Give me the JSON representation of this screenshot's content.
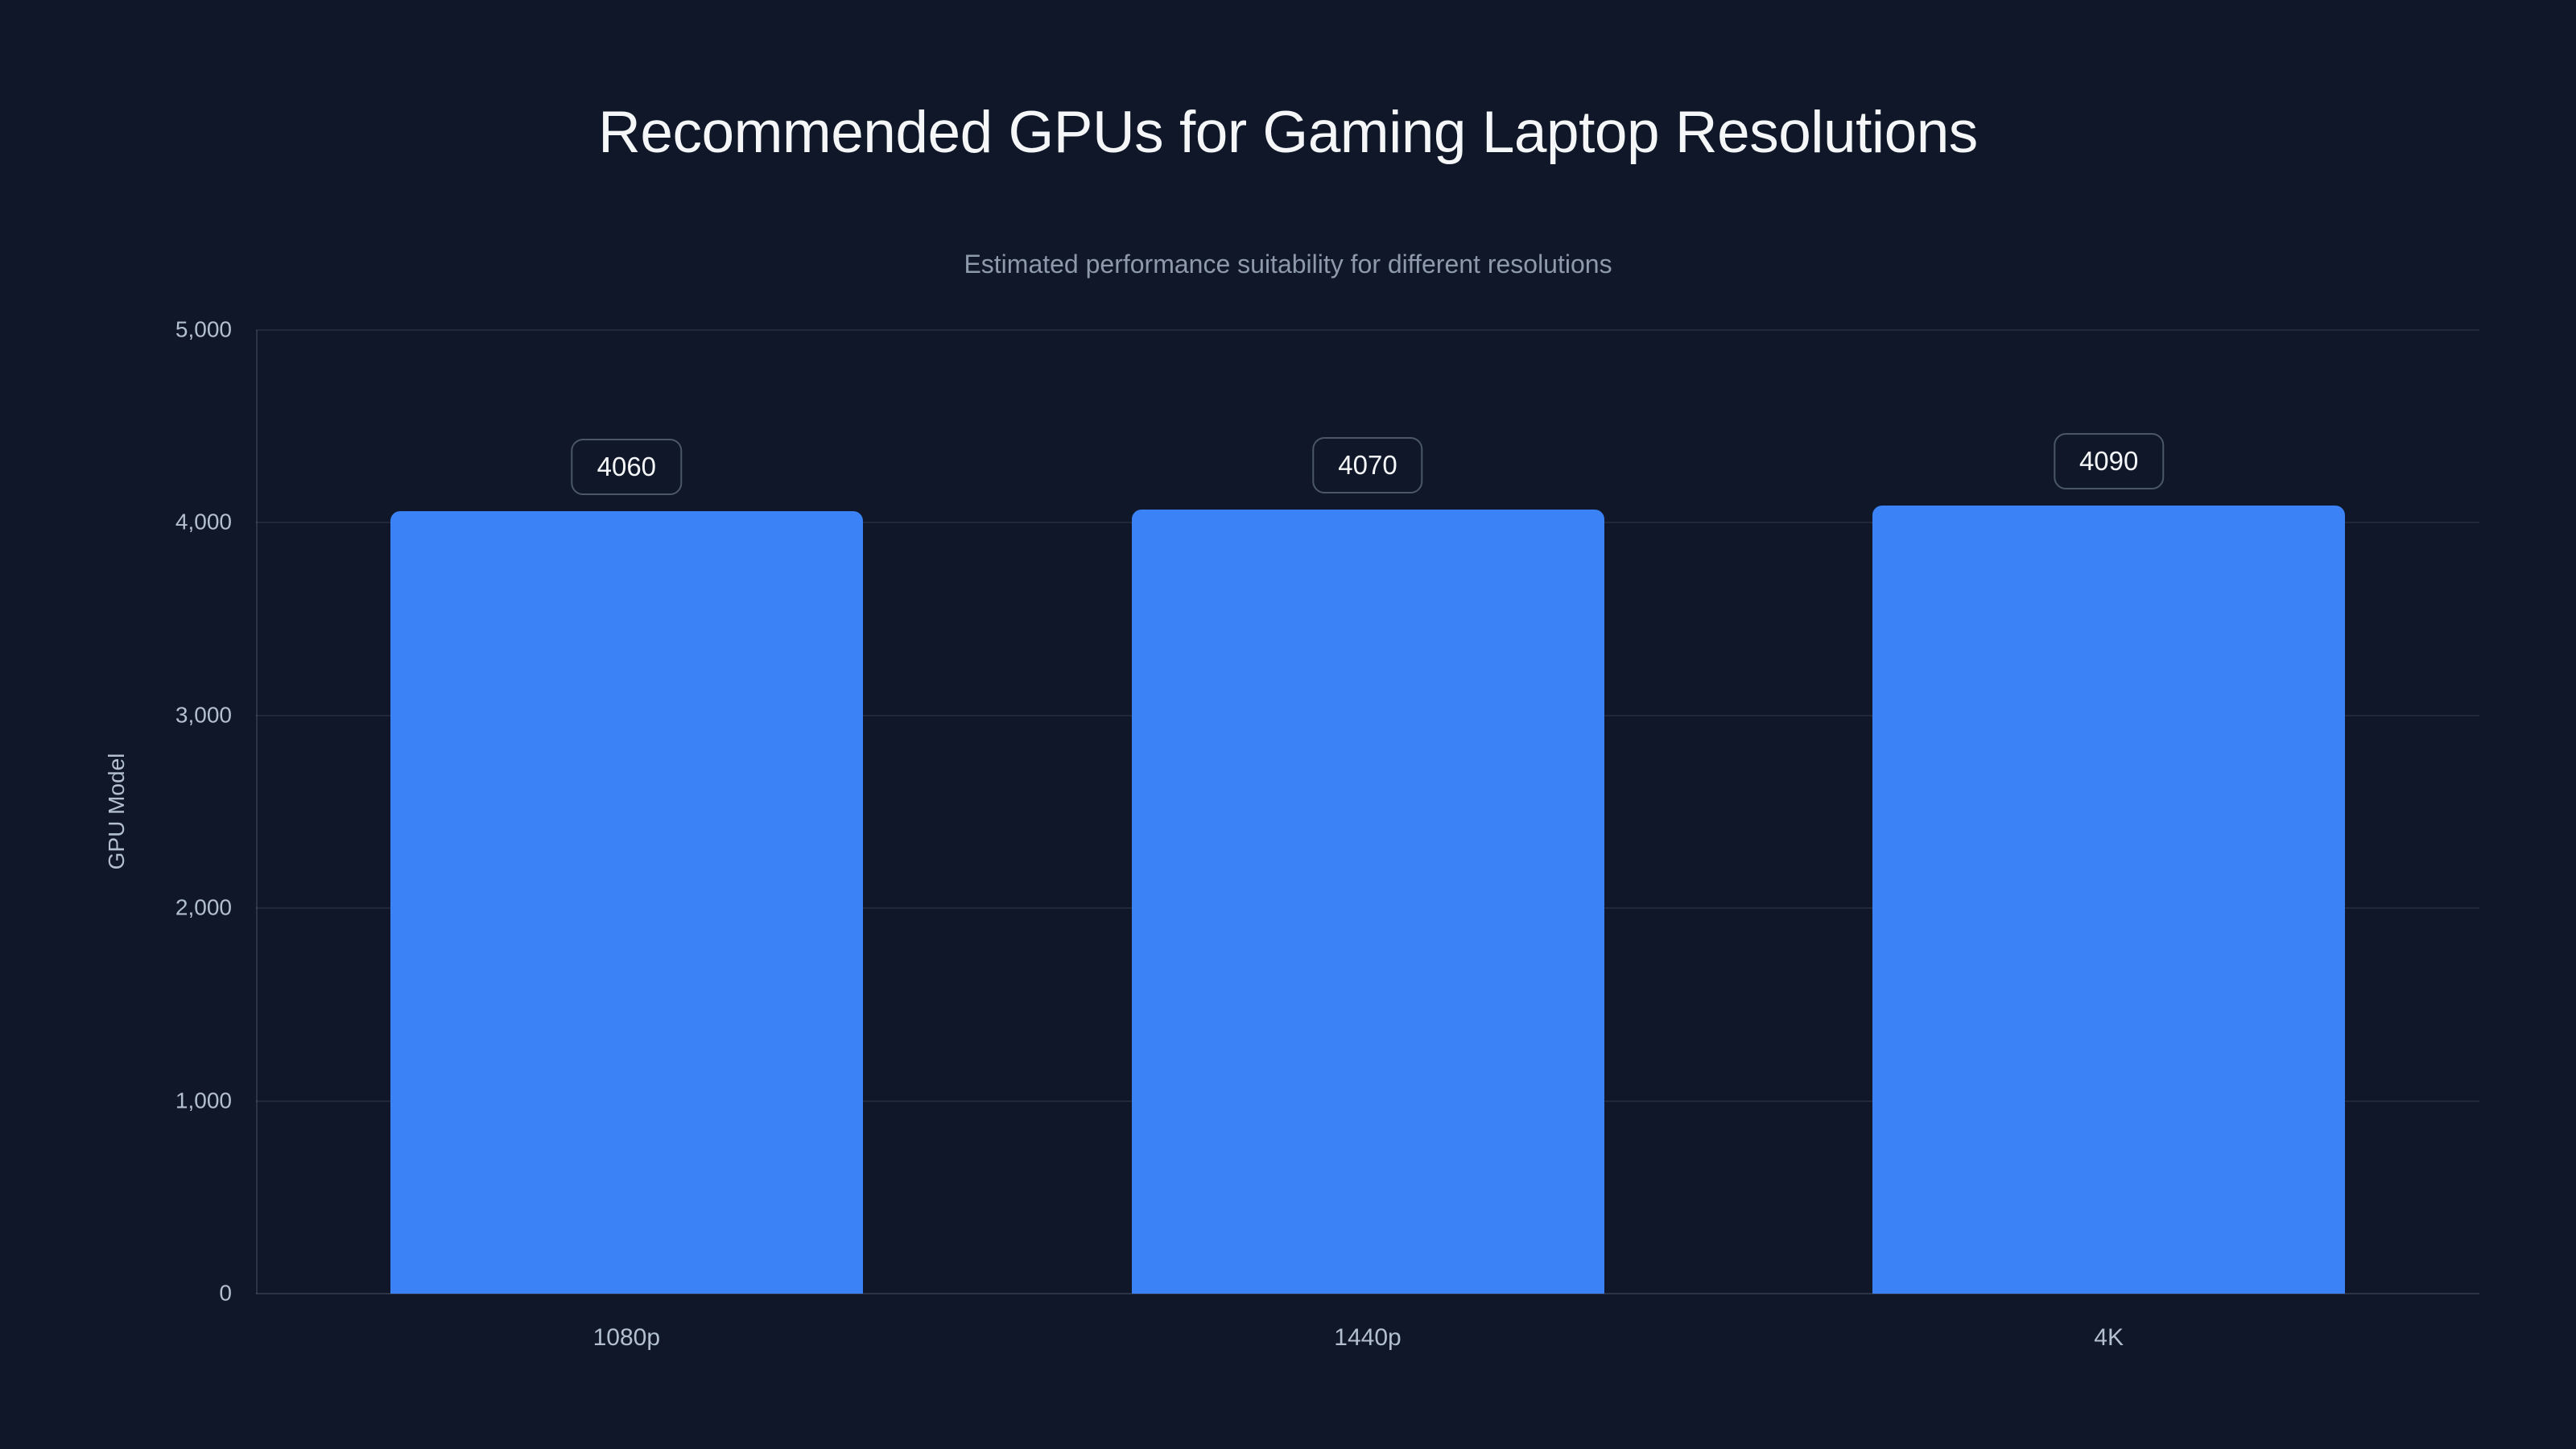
{
  "page": {
    "title": "Recommended GPUs for Gaming Laptop Resolutions",
    "subtitle": "Estimated performance suitability for different resolutions"
  },
  "chart_data": {
    "type": "bar",
    "title": "Recommended GPUs for Gaming Laptop Resolutions",
    "subtitle": "Estimated performance suitability for different resolutions",
    "categories": [
      "1080p",
      "1440p",
      "4K"
    ],
    "values": [
      4060,
      4070,
      4090
    ],
    "bar_labels": [
      "4060",
      "4070",
      "4090"
    ],
    "xlabel": "",
    "ylabel": "GPU Model",
    "ylim": [
      0,
      5000
    ],
    "yticks": [
      0,
      1000,
      2000,
      3000,
      4000,
      5000
    ],
    "ytick_labels": [
      "0",
      "1,000",
      "2,000",
      "3,000",
      "4,000",
      "5,000"
    ],
    "grid": true,
    "legend": false,
    "layout": {
      "legend_position": "none",
      "bar_corner_radius": 12,
      "bar_label_style": "outlined-pill-above-bar"
    },
    "colors": {
      "background": "#0f1729",
      "bar": "#3b82f6",
      "gridline": "rgba(148,163,184,0.13)",
      "axis_line": "rgba(148,163,184,0.22)",
      "tick_text": "#b3bfce",
      "title_text": "#f4f6f8",
      "subtitle_text": "#8e99ab",
      "badge_border": "#4b5768"
    }
  }
}
